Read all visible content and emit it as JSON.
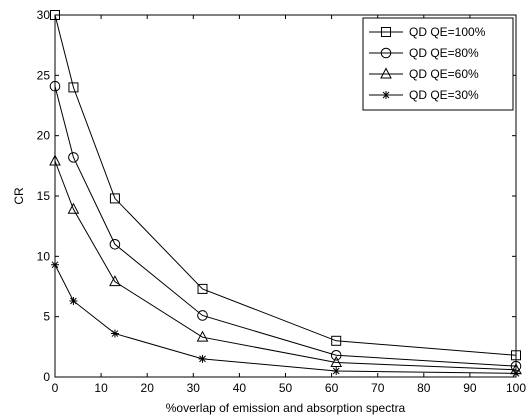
{
  "chart_data": {
    "type": "line",
    "title": "",
    "xlabel": "%overlap of emission and absorption spectra",
    "ylabel": "CR",
    "xlim": [
      0,
      100
    ],
    "ylim": [
      0,
      30
    ],
    "xticks": [
      0,
      10,
      20,
      30,
      40,
      50,
      60,
      70,
      80,
      90,
      100
    ],
    "yticks": [
      0,
      5,
      10,
      15,
      20,
      25,
      30
    ],
    "grid": false,
    "legend_position": "top-right",
    "x": [
      0,
      4,
      13,
      32,
      61,
      100
    ],
    "series": [
      {
        "name": "QD QE=100%",
        "marker": "square",
        "values": [
          30.0,
          24.0,
          14.8,
          7.3,
          3.0,
          1.8
        ]
      },
      {
        "name": "QD QE=80%",
        "marker": "circle",
        "values": [
          24.1,
          18.2,
          11.0,
          5.1,
          1.8,
          0.9
        ]
      },
      {
        "name": "QD QE=60%",
        "marker": "triangle",
        "values": [
          17.9,
          13.9,
          7.9,
          3.3,
          1.2,
          0.6
        ]
      },
      {
        "name": "QD QE=30%",
        "marker": "star",
        "values": [
          9.3,
          6.3,
          3.6,
          1.5,
          0.5,
          0.3
        ]
      }
    ]
  }
}
